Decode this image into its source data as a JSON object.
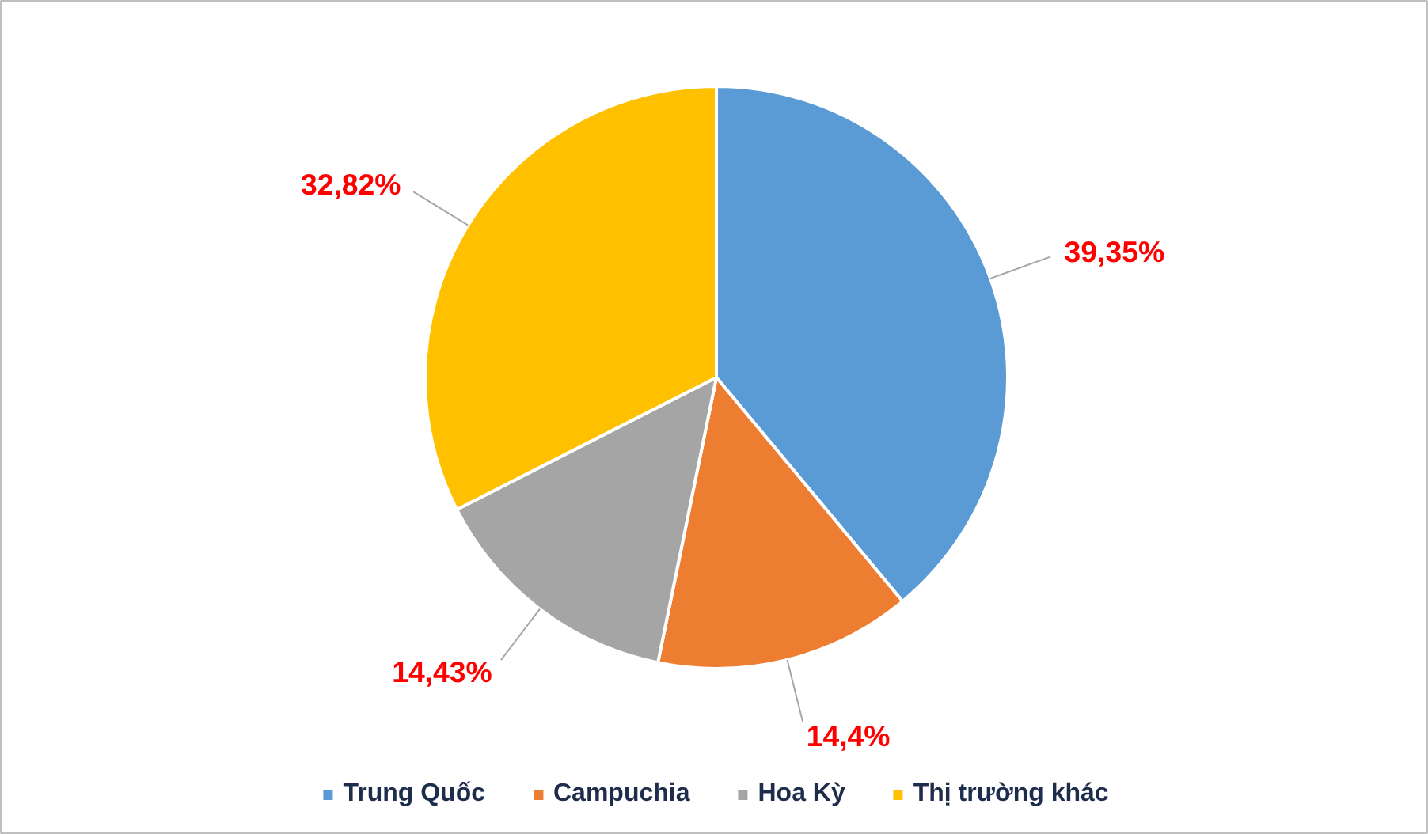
{
  "chart_data": {
    "type": "pie",
    "categories": [
      "Trung Quốc",
      "Campuchia",
      "Hoa Kỳ",
      "Thị trường khác"
    ],
    "values": [
      39.35,
      14.4,
      14.43,
      32.82
    ],
    "value_labels": [
      "39,35%",
      "14,4%",
      "14,43%",
      "32,82%"
    ],
    "colors": [
      "#5b9bd5",
      "#ed7d31",
      "#a5a5a5",
      "#ffc000"
    ],
    "legend": "bottom"
  }
}
